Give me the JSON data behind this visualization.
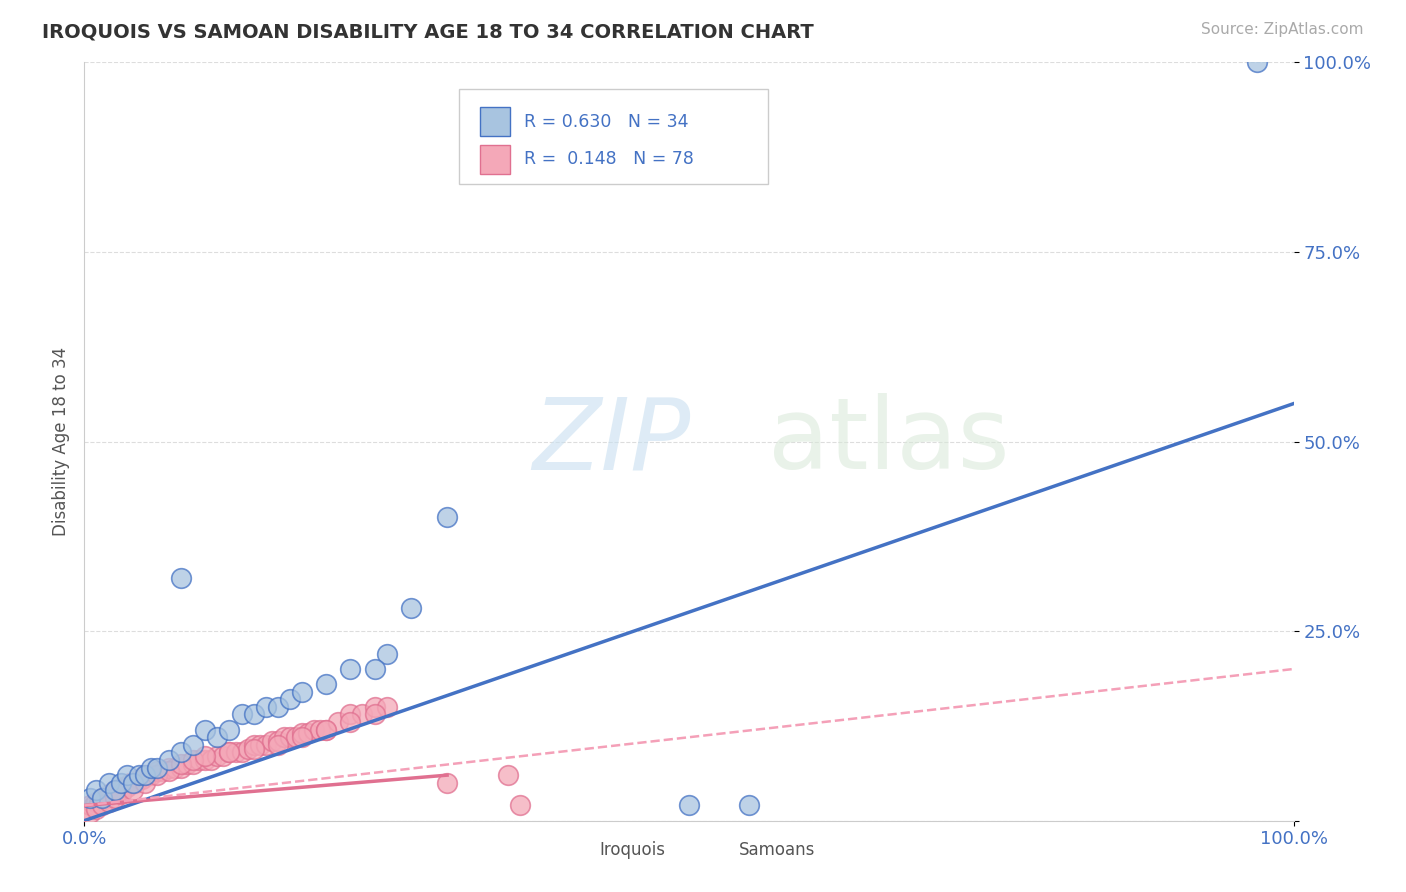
{
  "title": "IROQUOIS VS SAMOAN DISABILITY AGE 18 TO 34 CORRELATION CHART",
  "source_text": "Source: ZipAtlas.com",
  "ylabel": "Disability Age 18 to 34",
  "xlim": [
    0,
    1.0
  ],
  "ylim": [
    0,
    1.0
  ],
  "iroquois_color": "#a8c4e0",
  "samoans_color": "#f4a8b8",
  "iroquois_line_color": "#4472c4",
  "samoans_line_color": "#e07090",
  "samoans_dash_color": "#f4a0b8",
  "watermark_zip": "ZIP",
  "watermark_atlas": "atlas",
  "background_color": "#ffffff",
  "blue_line_x": [
    0.0,
    1.0
  ],
  "blue_line_y": [
    0.0,
    0.55
  ],
  "pink_solid_line_x": [
    0.0,
    0.3
  ],
  "pink_solid_line_y": [
    0.02,
    0.06
  ],
  "pink_dash_line_x": [
    0.0,
    1.0
  ],
  "pink_dash_line_y": [
    0.02,
    0.2
  ],
  "iroquois_x": [
    0.005,
    0.01,
    0.015,
    0.02,
    0.025,
    0.03,
    0.035,
    0.04,
    0.045,
    0.05,
    0.055,
    0.06,
    0.07,
    0.08,
    0.09,
    0.1,
    0.11,
    0.12,
    0.13,
    0.14,
    0.15,
    0.16,
    0.17,
    0.18,
    0.2,
    0.22,
    0.25,
    0.27,
    0.5,
    0.55,
    0.97,
    0.08,
    0.24,
    0.3
  ],
  "iroquois_y": [
    0.03,
    0.04,
    0.03,
    0.05,
    0.04,
    0.05,
    0.06,
    0.05,
    0.06,
    0.06,
    0.07,
    0.07,
    0.08,
    0.09,
    0.1,
    0.12,
    0.11,
    0.12,
    0.14,
    0.14,
    0.15,
    0.15,
    0.16,
    0.17,
    0.18,
    0.2,
    0.22,
    0.28,
    0.02,
    0.02,
    1.0,
    0.32,
    0.2,
    0.4
  ],
  "samoans_x": [
    0.003,
    0.005,
    0.008,
    0.01,
    0.012,
    0.015,
    0.018,
    0.02,
    0.022,
    0.025,
    0.028,
    0.03,
    0.032,
    0.035,
    0.038,
    0.04,
    0.042,
    0.045,
    0.048,
    0.05,
    0.055,
    0.06,
    0.065,
    0.07,
    0.075,
    0.08,
    0.085,
    0.09,
    0.095,
    0.1,
    0.105,
    0.11,
    0.115,
    0.12,
    0.125,
    0.13,
    0.135,
    0.14,
    0.145,
    0.15,
    0.155,
    0.16,
    0.165,
    0.17,
    0.175,
    0.18,
    0.185,
    0.19,
    0.195,
    0.2,
    0.21,
    0.22,
    0.23,
    0.24,
    0.25,
    0.005,
    0.01,
    0.015,
    0.02,
    0.025,
    0.03,
    0.04,
    0.05,
    0.06,
    0.07,
    0.08,
    0.09,
    0.1,
    0.12,
    0.14,
    0.16,
    0.18,
    0.2,
    0.22,
    0.24,
    0.3,
    0.35,
    0.36
  ],
  "samoans_y": [
    0.015,
    0.02,
    0.02,
    0.025,
    0.025,
    0.03,
    0.03,
    0.035,
    0.035,
    0.04,
    0.04,
    0.04,
    0.045,
    0.045,
    0.05,
    0.05,
    0.05,
    0.055,
    0.055,
    0.06,
    0.06,
    0.065,
    0.065,
    0.07,
    0.07,
    0.07,
    0.075,
    0.075,
    0.08,
    0.08,
    0.08,
    0.085,
    0.085,
    0.09,
    0.09,
    0.09,
    0.095,
    0.1,
    0.1,
    0.1,
    0.105,
    0.105,
    0.11,
    0.11,
    0.11,
    0.115,
    0.115,
    0.12,
    0.12,
    0.12,
    0.13,
    0.14,
    0.14,
    0.15,
    0.15,
    0.01,
    0.015,
    0.02,
    0.025,
    0.03,
    0.035,
    0.04,
    0.05,
    0.06,
    0.065,
    0.075,
    0.08,
    0.085,
    0.09,
    0.095,
    0.1,
    0.11,
    0.12,
    0.13,
    0.14,
    0.05,
    0.06,
    0.02
  ]
}
